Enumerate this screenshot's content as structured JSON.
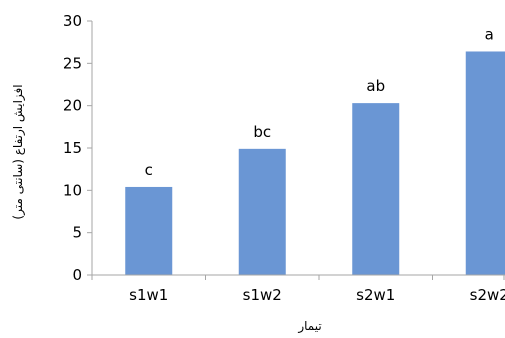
{
  "chart_data": {
    "type": "bar",
    "title": "",
    "xlabel": "تیمار",
    "ylabel": "افزایش ارتفاع (سانتی متر)",
    "categories": [
      "s1w1",
      "s1w2",
      "s2w1",
      "s2w2"
    ],
    "series": [
      {
        "values": [
          10.4,
          14.9,
          20.3,
          26.4
        ],
        "labels": [
          "c",
          "bc",
          "ab",
          "a"
        ]
      }
    ],
    "ylim": [
      0,
      30
    ],
    "yticks": [
      "0",
      "5",
      "10",
      "15",
      "20",
      "25",
      "30"
    ],
    "grid": false,
    "legend": "none",
    "bar_color": "#6a96d4",
    "axis_color": "#a6a6a6"
  }
}
